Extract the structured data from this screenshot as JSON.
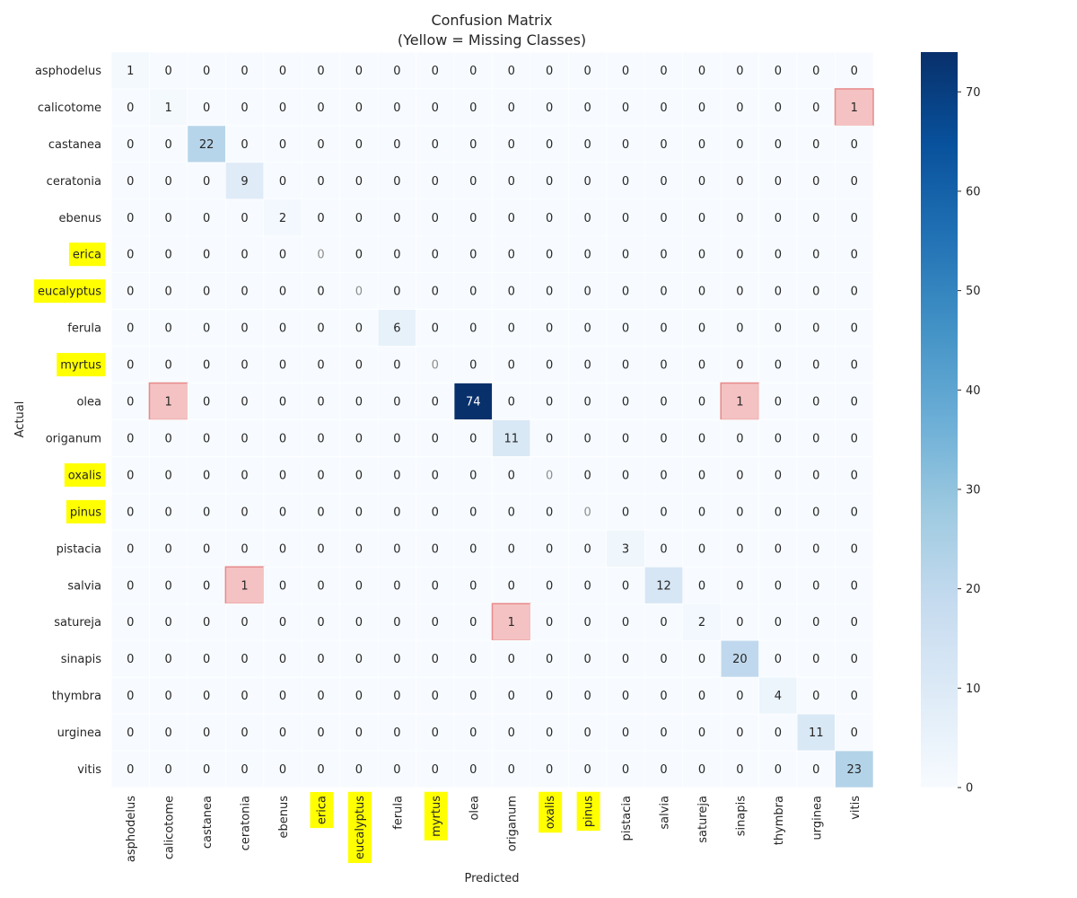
{
  "chart_data": {
    "type": "heatmap",
    "title": "Confusion Matrix",
    "subtitle": "(Yellow = Missing Classes)",
    "xlabel": "Predicted",
    "ylabel": "Actual",
    "labels": [
      "asphodelus",
      "calicotome",
      "castanea",
      "ceratonia",
      "ebenus",
      "erica",
      "eucalyptus",
      "ferula",
      "myrtus",
      "olea",
      "origanum",
      "oxalis",
      "pinus",
      "pistacia",
      "salvia",
      "satureja",
      "sinapis",
      "thymbra",
      "urginea",
      "vitis"
    ],
    "missing_classes": [
      "erica",
      "eucalyptus",
      "myrtus",
      "oxalis",
      "pinus"
    ],
    "matrix": [
      [
        1,
        0,
        0,
        0,
        0,
        0,
        0,
        0,
        0,
        0,
        0,
        0,
        0,
        0,
        0,
        0,
        0,
        0,
        0,
        0
      ],
      [
        0,
        1,
        0,
        0,
        0,
        0,
        0,
        0,
        0,
        0,
        0,
        0,
        0,
        0,
        0,
        0,
        0,
        0,
        0,
        1
      ],
      [
        0,
        0,
        22,
        0,
        0,
        0,
        0,
        0,
        0,
        0,
        0,
        0,
        0,
        0,
        0,
        0,
        0,
        0,
        0,
        0
      ],
      [
        0,
        0,
        0,
        9,
        0,
        0,
        0,
        0,
        0,
        0,
        0,
        0,
        0,
        0,
        0,
        0,
        0,
        0,
        0,
        0
      ],
      [
        0,
        0,
        0,
        0,
        2,
        0,
        0,
        0,
        0,
        0,
        0,
        0,
        0,
        0,
        0,
        0,
        0,
        0,
        0,
        0
      ],
      [
        0,
        0,
        0,
        0,
        0,
        0,
        0,
        0,
        0,
        0,
        0,
        0,
        0,
        0,
        0,
        0,
        0,
        0,
        0,
        0
      ],
      [
        0,
        0,
        0,
        0,
        0,
        0,
        0,
        0,
        0,
        0,
        0,
        0,
        0,
        0,
        0,
        0,
        0,
        0,
        0,
        0
      ],
      [
        0,
        0,
        0,
        0,
        0,
        0,
        0,
        6,
        0,
        0,
        0,
        0,
        0,
        0,
        0,
        0,
        0,
        0,
        0,
        0
      ],
      [
        0,
        0,
        0,
        0,
        0,
        0,
        0,
        0,
        0,
        0,
        0,
        0,
        0,
        0,
        0,
        0,
        0,
        0,
        0,
        0
      ],
      [
        0,
        1,
        0,
        0,
        0,
        0,
        0,
        0,
        0,
        74,
        0,
        0,
        0,
        0,
        0,
        0,
        1,
        0,
        0,
        0
      ],
      [
        0,
        0,
        0,
        0,
        0,
        0,
        0,
        0,
        0,
        0,
        11,
        0,
        0,
        0,
        0,
        0,
        0,
        0,
        0,
        0
      ],
      [
        0,
        0,
        0,
        0,
        0,
        0,
        0,
        0,
        0,
        0,
        0,
        0,
        0,
        0,
        0,
        0,
        0,
        0,
        0,
        0
      ],
      [
        0,
        0,
        0,
        0,
        0,
        0,
        0,
        0,
        0,
        0,
        0,
        0,
        0,
        0,
        0,
        0,
        0,
        0,
        0,
        0
      ],
      [
        0,
        0,
        0,
        0,
        0,
        0,
        0,
        0,
        0,
        0,
        0,
        0,
        0,
        3,
        0,
        0,
        0,
        0,
        0,
        0
      ],
      [
        0,
        0,
        0,
        1,
        0,
        0,
        0,
        0,
        0,
        0,
        0,
        0,
        0,
        0,
        12,
        0,
        0,
        0,
        0,
        0
      ],
      [
        0,
        0,
        0,
        0,
        0,
        0,
        0,
        0,
        0,
        0,
        1,
        0,
        0,
        0,
        0,
        2,
        0,
        0,
        0,
        0
      ],
      [
        0,
        0,
        0,
        0,
        0,
        0,
        0,
        0,
        0,
        0,
        0,
        0,
        0,
        0,
        0,
        0,
        20,
        0,
        0,
        0
      ],
      [
        0,
        0,
        0,
        0,
        0,
        0,
        0,
        0,
        0,
        0,
        0,
        0,
        0,
        0,
        0,
        0,
        0,
        4,
        0,
        0
      ],
      [
        0,
        0,
        0,
        0,
        0,
        0,
        0,
        0,
        0,
        0,
        0,
        0,
        0,
        0,
        0,
        0,
        0,
        0,
        11,
        0
      ],
      [
        0,
        0,
        0,
        0,
        0,
        0,
        0,
        0,
        0,
        0,
        0,
        0,
        0,
        0,
        0,
        0,
        0,
        0,
        0,
        23
      ]
    ],
    "colorbar": {
      "min": 0,
      "max": 74,
      "ticks": [
        0,
        10,
        20,
        30,
        40,
        50,
        60,
        70
      ]
    },
    "colors": {
      "cmap_low": "#f7fbff",
      "cmap_high": "#08306b",
      "missing_label_bg": "#ffff00",
      "misclassified_bg": "#f4c2c2",
      "misclassified_border": "#e88a8a"
    }
  }
}
